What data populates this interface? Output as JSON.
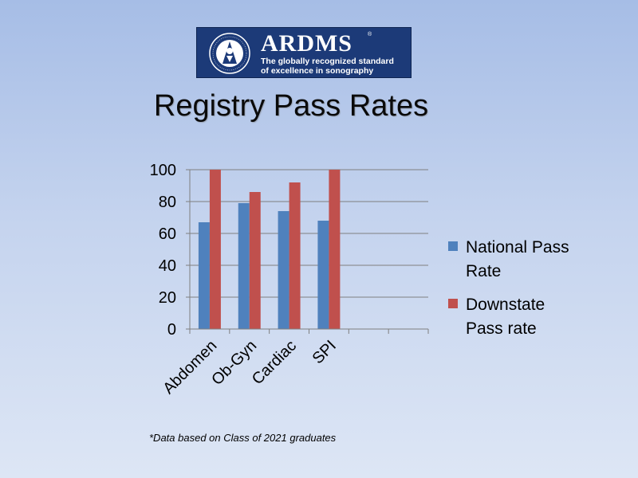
{
  "logo": {
    "brand": "ARDMS",
    "registered_mark": "®",
    "tagline_line1": "The globally recognized standard",
    "tagline_line2": "of excellence in sonography",
    "seal_text": "AMERICAN REGISTRY FOR DIAGNOSTIC MEDICAL SONOGRAPHY",
    "background_color": "#1c3a78"
  },
  "slide_title": "Registry Pass Rates",
  "footnote": "*Data based on Class of 2021 graduates",
  "chart_data": {
    "type": "bar",
    "title": "",
    "xlabel": "",
    "ylabel": "",
    "categories": [
      "Abdomen",
      "Ob-Gyn",
      "Cardiac",
      "SPI",
      "",
      ""
    ],
    "series": [
      {
        "name": "National Pass Rate",
        "label_lines": [
          "National Pass",
          "Rate"
        ],
        "color": "#4f81bd",
        "values": [
          67,
          79,
          74,
          68,
          null,
          null
        ]
      },
      {
        "name": "Downstate Pass rate",
        "label_lines": [
          "Downstate",
          "Pass rate"
        ],
        "color": "#c0504d",
        "values": [
          100,
          86,
          92,
          100,
          null,
          null
        ]
      }
    ],
    "ylim": [
      0,
      100
    ],
    "yticks": [
      0,
      20,
      40,
      60,
      80,
      100
    ],
    "grid": true,
    "legend": "right"
  }
}
